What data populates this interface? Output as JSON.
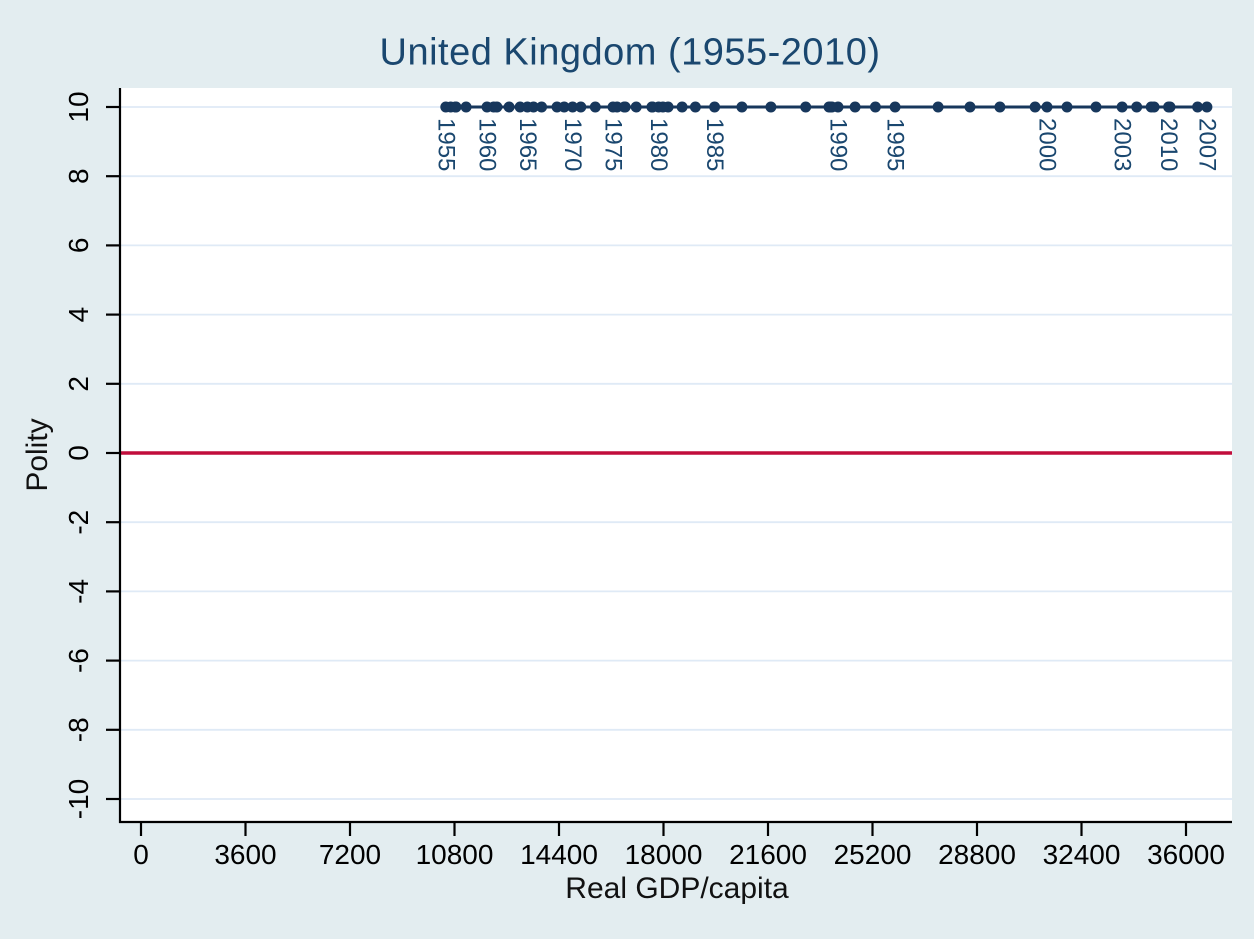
{
  "colors": {
    "figure_background": "#e3edf0",
    "plot_background": "#ffffff",
    "gridline": "#dfeaf6",
    "axis": "#000000",
    "tick_label": "#000000",
    "title": "#1a476f",
    "point_label": "#1a476f"
  },
  "chart_data": {
    "type": "scatter",
    "title": "United Kingdom (1955-2010)",
    "xlabel": "Real GDP/capita",
    "ylabel": "Polity",
    "xlim": [
      0,
      36000
    ],
    "ylim": [
      -10,
      10
    ],
    "x_ticks": [
      0,
      3600,
      7200,
      10800,
      14400,
      18000,
      21600,
      25200,
      28800,
      32400,
      36000
    ],
    "y_ticks": [
      -10,
      -8,
      -6,
      -4,
      -2,
      0,
      2,
      4,
      6,
      8,
      10
    ],
    "grid": "horizontal gridlines at every y tick",
    "legend": "none",
    "refline": {
      "axis": "y",
      "value": 0,
      "color": "#c10d3c"
    },
    "series": [
      {
        "name": "UK Polity score vs Real GDP per capita (points connected in year order)",
        "color": "#17375c",
        "marker": "filled-circle",
        "points": [
          {
            "year": 1955,
            "x": 10500,
            "y": 10,
            "label": "1955"
          },
          {
            "year": 1956,
            "x": 10670,
            "y": 10
          },
          {
            "year": 1957,
            "x": 10830,
            "y": 10
          },
          {
            "year": 1958,
            "x": 10850,
            "y": 10
          },
          {
            "year": 1959,
            "x": 11200,
            "y": 10
          },
          {
            "year": 1960,
            "x": 11920,
            "y": 10,
            "label": "1960"
          },
          {
            "year": 1961,
            "x": 12150,
            "y": 10
          },
          {
            "year": 1962,
            "x": 12260,
            "y": 10
          },
          {
            "year": 1963,
            "x": 12680,
            "y": 10
          },
          {
            "year": 1964,
            "x": 13060,
            "y": 10
          },
          {
            "year": 1965,
            "x": 13310,
            "y": 10,
            "label": "1965"
          },
          {
            "year": 1966,
            "x": 13520,
            "y": 10
          },
          {
            "year": 1967,
            "x": 13800,
            "y": 10
          },
          {
            "year": 1968,
            "x": 14330,
            "y": 10
          },
          {
            "year": 1969,
            "x": 14580,
            "y": 10
          },
          {
            "year": 1970,
            "x": 14870,
            "y": 10,
            "label": "1970"
          },
          {
            "year": 1971,
            "x": 15150,
            "y": 10
          },
          {
            "year": 1972,
            "x": 15650,
            "y": 10
          },
          {
            "year": 1973,
            "x": 16650,
            "y": 10
          },
          {
            "year": 1974,
            "x": 16400,
            "y": 10
          },
          {
            "year": 1975,
            "x": 16260,
            "y": 10,
            "label": "1975"
          },
          {
            "year": 1976,
            "x": 16680,
            "y": 10
          },
          {
            "year": 1977,
            "x": 17060,
            "y": 10
          },
          {
            "year": 1978,
            "x": 17600,
            "y": 10
          },
          {
            "year": 1979,
            "x": 18160,
            "y": 10
          },
          {
            "year": 1980,
            "x": 17830,
            "y": 10,
            "label": "1980"
          },
          {
            "year": 1981,
            "x": 17620,
            "y": 10
          },
          {
            "year": 1982,
            "x": 17980,
            "y": 10
          },
          {
            "year": 1983,
            "x": 18640,
            "y": 10
          },
          {
            "year": 1984,
            "x": 19100,
            "y": 10
          },
          {
            "year": 1985,
            "x": 19760,
            "y": 10,
            "label": "1985"
          },
          {
            "year": 1986,
            "x": 20700,
            "y": 10
          },
          {
            "year": 1987,
            "x": 21700,
            "y": 10
          },
          {
            "year": 1988,
            "x": 22900,
            "y": 10
          },
          {
            "year": 1989,
            "x": 23700,
            "y": 10
          },
          {
            "year": 1990,
            "x": 24010,
            "y": 10,
            "label": "1990"
          },
          {
            "year": 1991,
            "x": 23750,
            "y": 10
          },
          {
            "year": 1992,
            "x": 23800,
            "y": 10
          },
          {
            "year": 1993,
            "x": 24600,
            "y": 10
          },
          {
            "year": 1994,
            "x": 25300,
            "y": 10
          },
          {
            "year": 1995,
            "x": 25980,
            "y": 10,
            "label": "1995"
          },
          {
            "year": 1996,
            "x": 27460,
            "y": 10
          },
          {
            "year": 1997,
            "x": 28560,
            "y": 10
          },
          {
            "year": 1998,
            "x": 29590,
            "y": 10
          },
          {
            "year": 1999,
            "x": 30800,
            "y": 10
          },
          {
            "year": 2000,
            "x": 31210,
            "y": 10,
            "label": "2000"
          },
          {
            "year": 2001,
            "x": 31900,
            "y": 10
          },
          {
            "year": 2002,
            "x": 32900,
            "y": 10
          },
          {
            "year": 2003,
            "x": 33800,
            "y": 10,
            "label": "2003"
          },
          {
            "year": 2004,
            "x": 34300,
            "y": 10
          },
          {
            "year": 2005,
            "x": 34800,
            "y": 10
          },
          {
            "year": 2006,
            "x": 35450,
            "y": 10
          },
          {
            "year": 2007,
            "x": 36720,
            "y": 10,
            "label": "2007"
          },
          {
            "year": 2008,
            "x": 36400,
            "y": 10
          },
          {
            "year": 2009,
            "x": 34900,
            "y": 10
          },
          {
            "year": 2010,
            "x": 35400,
            "y": 10,
            "label": "2010"
          }
        ]
      }
    ]
  }
}
